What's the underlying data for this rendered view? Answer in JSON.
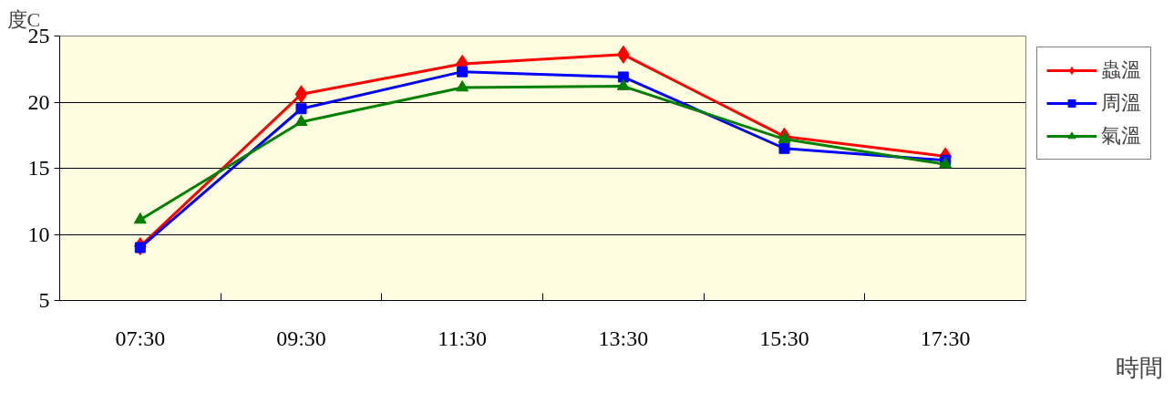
{
  "chart_data": {
    "type": "line",
    "xlabel": "時間",
    "ylabel": "度C",
    "categories": [
      "07:30",
      "09:30",
      "11:30",
      "13:30",
      "15:30",
      "17:30"
    ],
    "series": [
      {
        "name": "蟲溫",
        "color": "#ff0000",
        "marker": "diamond",
        "values": [
          9.1,
          20.6,
          22.9,
          23.6,
          17.4,
          15.9
        ]
      },
      {
        "name": "周溫",
        "color": "#0000ff",
        "marker": "square",
        "values": [
          9.0,
          19.5,
          22.3,
          21.9,
          16.5,
          15.6
        ]
      },
      {
        "name": "氣溫",
        "color": "#008000",
        "marker": "triangle",
        "values": [
          11.1,
          18.5,
          21.1,
          21.2,
          17.2,
          15.3
        ]
      }
    ],
    "ylim": [
      5,
      25
    ],
    "yticks": [
      5,
      10,
      15,
      20,
      25
    ],
    "grid": "y",
    "legend": "right",
    "line_style": "solid"
  }
}
